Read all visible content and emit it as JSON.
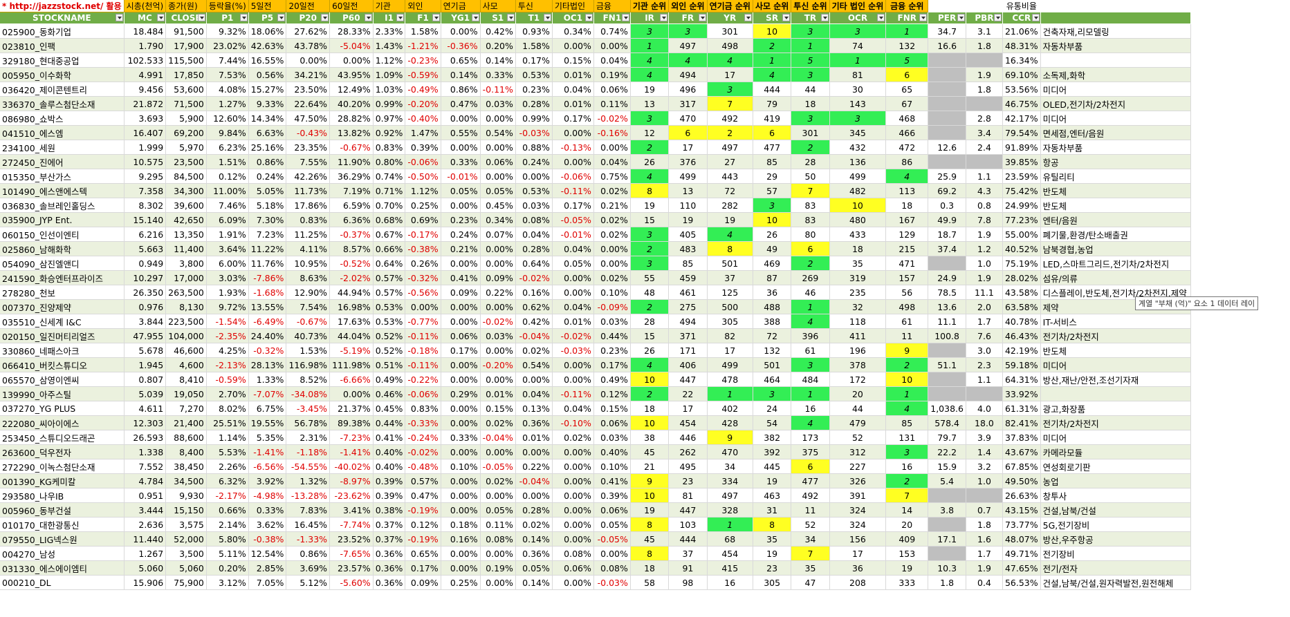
{
  "top_row": {
    "link": "* http://jazzstock.net/ 활용",
    "cells": [
      "시총(천억)",
      "종가(원)",
      "등락율(%)",
      "5일전",
      "20일전",
      "60일전",
      "기관",
      "외인",
      "연기금",
      "사모",
      "투신",
      "기타법인",
      "금융",
      "기관 순위",
      "외인 순위",
      "연기금 순위",
      "사모 순위",
      "투신 순위",
      "기타 법인 순위",
      "금융 순위",
      "",
      "",
      "유통비율"
    ]
  },
  "headers": [
    "STOCKNAME",
    "MC",
    "CLOSE",
    "P1",
    "P5",
    "P20",
    "P60",
    "I1",
    "F1",
    "YG1",
    "S1",
    "T1",
    "OC1",
    "FN1",
    "IR",
    "FR",
    "YR",
    "SR",
    "TR",
    "OCR",
    "FNR",
    "PER",
    "PBR",
    "CCR"
  ],
  "rows": [
    [
      "025900_동화기업",
      "18.484",
      "91,500",
      "9.32%",
      "18.06%",
      "27.62%",
      "28.33%",
      "2.33%",
      "1.58%",
      "0.00%",
      "0.42%",
      "0.93%",
      "0.34%",
      "0.74%",
      "3",
      "3",
      "301",
      "10",
      "3",
      "3",
      "1",
      "34.7",
      "3.1",
      "21.06%",
      "건축자재,리모델링"
    ],
    [
      "023810_인팩",
      "1.790",
      "17,900",
      "23.02%",
      "42.63%",
      "43.78%",
      "-5.04%",
      "1.43%",
      "-1.21%",
      "-0.36%",
      "0.20%",
      "1.58%",
      "0.00%",
      "0.00%",
      "1",
      "497",
      "498",
      "2",
      "1",
      "74",
      "132",
      "16.6",
      "1.8",
      "48.31%",
      "자동차부품"
    ],
    [
      "329180_현대중공업",
      "102.533",
      "115,500",
      "7.44%",
      "16.55%",
      "0.00%",
      "0.00%",
      "1.12%",
      "-0.23%",
      "0.65%",
      "0.14%",
      "0.17%",
      "0.15%",
      "0.04%",
      "4",
      "4",
      "4",
      "1",
      "5",
      "1",
      "5",
      "",
      "",
      "16.34%",
      ""
    ],
    [
      "005950_이수화학",
      "4.991",
      "17,850",
      "7.53%",
      "0.56%",
      "34.21%",
      "43.95%",
      "1.09%",
      "-0.59%",
      "0.14%",
      "0.33%",
      "0.53%",
      "0.01%",
      "0.19%",
      "4",
      "494",
      "17",
      "4",
      "3",
      "81",
      "6",
      "",
      "1.9",
      "69.10%",
      "소독제,화학"
    ],
    [
      "036420_제이콘텐트리",
      "9.456",
      "53,600",
      "4.08%",
      "15.27%",
      "23.50%",
      "12.49%",
      "1.03%",
      "-0.49%",
      "0.86%",
      "-0.11%",
      "0.23%",
      "0.04%",
      "0.06%",
      "19",
      "496",
      "3",
      "444",
      "44",
      "30",
      "65",
      "",
      "1.8",
      "53.56%",
      "미디어"
    ],
    [
      "336370_솔루스첨단소재",
      "21.872",
      "71,500",
      "1.27%",
      "9.33%",
      "22.64%",
      "40.20%",
      "0.99%",
      "-0.20%",
      "0.47%",
      "0.03%",
      "0.28%",
      "0.01%",
      "0.11%",
      "13",
      "317",
      "7",
      "79",
      "18",
      "143",
      "67",
      "",
      "",
      "46.75%",
      "OLED,전기차/2차전지"
    ],
    [
      "086980_쇼박스",
      "3.693",
      "5,900",
      "12.60%",
      "14.34%",
      "47.50%",
      "28.82%",
      "0.97%",
      "-0.40%",
      "0.00%",
      "0.00%",
      "0.99%",
      "0.17%",
      "-0.02%",
      "3",
      "470",
      "492",
      "419",
      "3",
      "3",
      "468",
      "",
      "2.8",
      "42.17%",
      "미디어"
    ],
    [
      "041510_에스엠",
      "16.407",
      "69,200",
      "9.84%",
      "6.63%",
      "-0.43%",
      "13.82%",
      "0.92%",
      "1.47%",
      "0.55%",
      "0.54%",
      "-0.03%",
      "0.00%",
      "-0.16%",
      "12",
      "6",
      "2",
      "6",
      "301",
      "345",
      "466",
      "",
      "3.4",
      "79.54%",
      "면세점,엔터/음원"
    ],
    [
      "234100_세원",
      "1.999",
      "5,970",
      "6.23%",
      "25.16%",
      "23.35%",
      "-0.67%",
      "0.83%",
      "0.39%",
      "0.00%",
      "0.00%",
      "0.88%",
      "-0.13%",
      "0.00%",
      "2",
      "17",
      "497",
      "477",
      "2",
      "432",
      "472",
      "12.6",
      "2.4",
      "91.89%",
      "자동차부품"
    ],
    [
      "272450_진에어",
      "10.575",
      "23,500",
      "1.51%",
      "0.86%",
      "7.55%",
      "11.90%",
      "0.80%",
      "-0.06%",
      "0.33%",
      "0.06%",
      "0.24%",
      "0.00%",
      "0.04%",
      "26",
      "376",
      "27",
      "85",
      "28",
      "136",
      "86",
      "",
      "",
      "39.85%",
      "항공"
    ],
    [
      "015350_부산가스",
      "9.295",
      "84,500",
      "0.12%",
      "0.24%",
      "42.26%",
      "36.29%",
      "0.74%",
      "-0.50%",
      "-0.01%",
      "0.00%",
      "0.00%",
      "-0.06%",
      "0.75%",
      "4",
      "499",
      "443",
      "29",
      "50",
      "499",
      "4",
      "25.9",
      "1.1",
      "23.59%",
      "유틸리티"
    ],
    [
      "101490_에스앤에스텍",
      "7.358",
      "34,300",
      "11.00%",
      "5.05%",
      "11.73%",
      "7.19%",
      "0.71%",
      "1.12%",
      "0.05%",
      "0.05%",
      "0.53%",
      "-0.11%",
      "0.02%",
      "8",
      "13",
      "72",
      "57",
      "7",
      "482",
      "113",
      "69.2",
      "4.3",
      "75.42%",
      "반도체"
    ],
    [
      "036830_솔브레인홀딩스",
      "8.302",
      "39,600",
      "7.46%",
      "5.18%",
      "17.86%",
      "6.59%",
      "0.70%",
      "0.25%",
      "0.00%",
      "0.45%",
      "0.03%",
      "0.17%",
      "0.21%",
      "19",
      "110",
      "282",
      "3",
      "83",
      "10",
      "18",
      "0.3",
      "0.8",
      "24.99%",
      "반도체"
    ],
    [
      "035900_JYP Ent.",
      "15.140",
      "42,650",
      "6.09%",
      "7.30%",
      "0.83%",
      "6.36%",
      "0.68%",
      "0.69%",
      "0.23%",
      "0.34%",
      "0.08%",
      "-0.05%",
      "0.02%",
      "15",
      "19",
      "19",
      "10",
      "83",
      "480",
      "167",
      "49.9",
      "7.8",
      "77.23%",
      "엔터/음원"
    ],
    [
      "060150_인선이엔티",
      "6.216",
      "13,350",
      "1.91%",
      "7.23%",
      "11.25%",
      "-0.37%",
      "0.67%",
      "-0.17%",
      "0.24%",
      "0.07%",
      "0.04%",
      "-0.01%",
      "0.02%",
      "3",
      "405",
      "4",
      "26",
      "80",
      "433",
      "129",
      "18.7",
      "1.9",
      "55.00%",
      "폐기물,환경/탄소배출권"
    ],
    [
      "025860_남해화학",
      "5.663",
      "11,400",
      "3.64%",
      "11.22%",
      "4.11%",
      "8.57%",
      "0.66%",
      "-0.38%",
      "0.21%",
      "0.00%",
      "0.28%",
      "0.04%",
      "0.00%",
      "2",
      "483",
      "8",
      "49",
      "6",
      "18",
      "215",
      "37.4",
      "1.2",
      "40.52%",
      "남북경협,농업"
    ],
    [
      "054090_삼진엘앤디",
      "0.949",
      "3,800",
      "6.00%",
      "11.76%",
      "10.95%",
      "-0.52%",
      "0.64%",
      "0.26%",
      "0.00%",
      "0.00%",
      "0.64%",
      "0.05%",
      "0.00%",
      "3",
      "85",
      "501",
      "469",
      "2",
      "35",
      "471",
      "",
      "1.0",
      "75.19%",
      "LED,스마트그리드,전기차/2차전지"
    ],
    [
      "241590_화승엔터프라이즈",
      "10.297",
      "17,000",
      "3.03%",
      "-7.86%",
      "8.63%",
      "-2.02%",
      "0.57%",
      "-0.32%",
      "0.41%",
      "0.09%",
      "-0.02%",
      "0.00%",
      "0.02%",
      "55",
      "459",
      "37",
      "87",
      "269",
      "319",
      "157",
      "24.9",
      "1.9",
      "28.02%",
      "섬유/의류"
    ],
    [
      "278280_천보",
      "26.350",
      "263,500",
      "1.93%",
      "-1.68%",
      "12.90%",
      "44.94%",
      "0.57%",
      "-0.56%",
      "0.09%",
      "0.22%",
      "0.16%",
      "0.00%",
      "0.10%",
      "48",
      "461",
      "125",
      "36",
      "46",
      "235",
      "56",
      "78.5",
      "11.1",
      "43.58%",
      "디스플레이,반도체,전기차/2차전지,제약"
    ],
    [
      "007370_진양제약",
      "0.976",
      "8,130",
      "9.72%",
      "13.55%",
      "7.54%",
      "16.98%",
      "0.53%",
      "0.00%",
      "0.00%",
      "0.00%",
      "0.62%",
      "0.04%",
      "-0.09%",
      "2",
      "275",
      "500",
      "488",
      "1",
      "32",
      "498",
      "13.6",
      "2.0",
      "63.58%",
      "제약"
    ],
    [
      "035510_신세계 I&C",
      "3.844",
      "223,500",
      "-1.54%",
      "-6.49%",
      "-0.67%",
      "17.63%",
      "0.53%",
      "-0.77%",
      "0.00%",
      "-0.02%",
      "0.42%",
      "0.01%",
      "0.03%",
      "28",
      "494",
      "305",
      "388",
      "4",
      "118",
      "61",
      "11.1",
      "1.7",
      "40.78%",
      "IT-서비스"
    ],
    [
      "020150_일진머티리얼즈",
      "47.955",
      "104,000",
      "-2.35%",
      "24.40%",
      "40.73%",
      "44.04%",
      "0.52%",
      "-0.11%",
      "0.06%",
      "0.03%",
      "-0.04%",
      "-0.02%",
      "0.44%",
      "15",
      "371",
      "82",
      "72",
      "396",
      "411",
      "11",
      "100.8",
      "7.6",
      "46.43%",
      "전기차/2차전지"
    ],
    [
      "330860_네패스아크",
      "5.678",
      "46,600",
      "4.25%",
      "-0.32%",
      "1.53%",
      "-5.19%",
      "0.52%",
      "-0.18%",
      "0.17%",
      "0.00%",
      "0.02%",
      "-0.03%",
      "0.23%",
      "26",
      "171",
      "17",
      "132",
      "61",
      "196",
      "9",
      "",
      "3.0",
      "42.19%",
      "반도체"
    ],
    [
      "066410_버킷스튜디오",
      "1.945",
      "4,600",
      "-2.13%",
      "28.13%",
      "116.98%",
      "111.98%",
      "0.51%",
      "-0.11%",
      "0.00%",
      "-0.20%",
      "0.54%",
      "0.00%",
      "0.17%",
      "4",
      "406",
      "499",
      "501",
      "3",
      "378",
      "2",
      "51.1",
      "2.3",
      "59.18%",
      "미디어"
    ],
    [
      "065570_삼영이엔씨",
      "0.807",
      "8,410",
      "-0.59%",
      "1.33%",
      "8.52%",
      "-6.66%",
      "0.49%",
      "-0.22%",
      "0.00%",
      "0.00%",
      "0.00%",
      "0.00%",
      "0.49%",
      "10",
      "447",
      "478",
      "464",
      "484",
      "172",
      "10",
      "",
      "1.1",
      "64.31%",
      "방산,재난/안전,조선기자재"
    ],
    [
      "139990_아주스틸",
      "5.039",
      "19,050",
      "2.70%",
      "-7.07%",
      "-34.08%",
      "0.00%",
      "0.46%",
      "-0.06%",
      "0.29%",
      "0.01%",
      "0.04%",
      "-0.11%",
      "0.12%",
      "2",
      "22",
      "1",
      "3",
      "1",
      "20",
      "1",
      "",
      "",
      "33.92%",
      ""
    ],
    [
      "037270_YG PLUS",
      "4.611",
      "7,270",
      "8.02%",
      "6.75%",
      "-3.45%",
      "21.37%",
      "0.45%",
      "0.83%",
      "0.00%",
      "0.15%",
      "0.13%",
      "0.04%",
      "0.15%",
      "18",
      "17",
      "402",
      "24",
      "16",
      "44",
      "4",
      "1,038.6",
      "4.0",
      "61.31%",
      "광고,화장품"
    ],
    [
      "222080_씨아이에스",
      "12.303",
      "21,400",
      "25.51%",
      "19.55%",
      "56.78%",
      "89.38%",
      "0.44%",
      "-0.33%",
      "0.00%",
      "0.02%",
      "0.36%",
      "-0.10%",
      "0.06%",
      "10",
      "454",
      "428",
      "54",
      "4",
      "479",
      "85",
      "578.4",
      "18.0",
      "82.41%",
      "전기차/2차전지"
    ],
    [
      "253450_스튜디오드래곤",
      "26.593",
      "88,600",
      "1.14%",
      "5.35%",
      "2.31%",
      "-7.23%",
      "0.41%",
      "-0.24%",
      "0.33%",
      "-0.04%",
      "0.01%",
      "0.02%",
      "0.03%",
      "38",
      "446",
      "9",
      "382",
      "173",
      "52",
      "131",
      "79.7",
      "3.9",
      "37.83%",
      "미디어"
    ],
    [
      "263600_덕우전자",
      "1.338",
      "8,400",
      "5.53%",
      "-1.41%",
      "-1.18%",
      "-1.41%",
      "0.40%",
      "-0.02%",
      "0.00%",
      "0.00%",
      "0.00%",
      "0.00%",
      "0.40%",
      "45",
      "262",
      "470",
      "392",
      "375",
      "312",
      "3",
      "22.2",
      "1.4",
      "43.67%",
      "카메라모듈"
    ],
    [
      "272290_이녹스첨단소재",
      "7.552",
      "38,450",
      "2.26%",
      "-6.56%",
      "-54.55%",
      "-40.02%",
      "0.40%",
      "-0.48%",
      "0.10%",
      "-0.05%",
      "0.22%",
      "0.00%",
      "0.10%",
      "21",
      "495",
      "34",
      "445",
      "6",
      "227",
      "16",
      "15.9",
      "3.2",
      "67.85%",
      "연성회로기판"
    ],
    [
      "001390_KG케미칼",
      "4.784",
      "34,500",
      "6.32%",
      "3.92%",
      "1.32%",
      "-8.97%",
      "0.39%",
      "0.57%",
      "0.00%",
      "0.02%",
      "-0.04%",
      "0.00%",
      "0.41%",
      "9",
      "23",
      "334",
      "19",
      "477",
      "326",
      "2",
      "5.4",
      "1.0",
      "49.50%",
      "농업"
    ],
    [
      "293580_나우IB",
      "0.951",
      "9,930",
      "-2.17%",
      "-4.98%",
      "-13.28%",
      "-23.62%",
      "0.39%",
      "0.47%",
      "0.00%",
      "0.00%",
      "0.00%",
      "0.00%",
      "0.39%",
      "10",
      "81",
      "497",
      "463",
      "492",
      "391",
      "7",
      "",
      "",
      "26.63%",
      "창투사"
    ],
    [
      "005960_동부건설",
      "3.444",
      "15,150",
      "0.66%",
      "0.33%",
      "7.83%",
      "3.41%",
      "0.38%",
      "-0.19%",
      "0.00%",
      "0.05%",
      "0.28%",
      "0.00%",
      "0.06%",
      "19",
      "447",
      "328",
      "31",
      "11",
      "324",
      "14",
      "3.8",
      "0.7",
      "43.15%",
      "건설,남북/건설"
    ],
    [
      "010170_대한광통신",
      "2.636",
      "3,575",
      "2.14%",
      "3.62%",
      "16.45%",
      "-7.74%",
      "0.37%",
      "0.12%",
      "0.18%",
      "0.11%",
      "0.02%",
      "0.00%",
      "0.05%",
      "8",
      "103",
      "1",
      "8",
      "52",
      "324",
      "20",
      "",
      "1.8",
      "73.77%",
      "5G,전기장비"
    ],
    [
      "079550_LIG넥스원",
      "11.440",
      "52,000",
      "5.80%",
      "-0.38%",
      "-1.33%",
      "23.52%",
      "0.37%",
      "-0.19%",
      "0.16%",
      "0.08%",
      "0.14%",
      "0.00%",
      "-0.05%",
      "45",
      "444",
      "68",
      "35",
      "34",
      "156",
      "409",
      "17.1",
      "1.6",
      "48.07%",
      "방산,우주항공"
    ],
    [
      "004270_남성",
      "1.267",
      "3,500",
      "5.11%",
      "12.54%",
      "0.86%",
      "-7.65%",
      "0.36%",
      "0.65%",
      "0.00%",
      "0.00%",
      "0.36%",
      "0.08%",
      "0.00%",
      "8",
      "37",
      "454",
      "19",
      "7",
      "17",
      "153",
      "",
      "1.7",
      "49.71%",
      "전기장비"
    ],
    [
      "031330_에스에이엠티",
      "5.060",
      "5,060",
      "0.20%",
      "2.85%",
      "3.69%",
      "23.57%",
      "0.36%",
      "0.17%",
      "0.00%",
      "0.19%",
      "0.05%",
      "0.06%",
      "0.08%",
      "18",
      "91",
      "415",
      "23",
      "35",
      "36",
      "19",
      "10.3",
      "1.9",
      "47.65%",
      "전기/전자"
    ],
    [
      "000210_DL",
      "15.906",
      "75,900",
      "3.12%",
      "7.05%",
      "5.12%",
      "-5.60%",
      "0.36%",
      "0.09%",
      "0.25%",
      "0.00%",
      "0.14%",
      "0.00%",
      "-0.03%",
      "58",
      "98",
      "16",
      "305",
      "47",
      "208",
      "333",
      "1.8",
      "0.4",
      "56.53%",
      "건설,남북/건설,원자력발전,원전해체"
    ]
  ],
  "highlights": {
    "green": [
      [
        0,
        14
      ],
      [
        0,
        15
      ],
      [
        0,
        18
      ],
      [
        0,
        19
      ],
      [
        0,
        20
      ],
      [
        1,
        14
      ],
      [
        1,
        17
      ],
      [
        1,
        18
      ],
      [
        2,
        14
      ],
      [
        2,
        15
      ],
      [
        2,
        16
      ],
      [
        2,
        17
      ],
      [
        2,
        18
      ],
      [
        2,
        19
      ],
      [
        2,
        20
      ],
      [
        3,
        14
      ],
      [
        3,
        17
      ],
      [
        3,
        18
      ],
      [
        4,
        16
      ],
      [
        6,
        14
      ],
      [
        6,
        18
      ],
      [
        6,
        19
      ],
      [
        8,
        14
      ],
      [
        8,
        18
      ],
      [
        10,
        14
      ],
      [
        10,
        20
      ],
      [
        12,
        17
      ],
      [
        14,
        14
      ],
      [
        14,
        16
      ],
      [
        15,
        14
      ],
      [
        16,
        14
      ],
      [
        16,
        18
      ],
      [
        19,
        14
      ],
      [
        19,
        18
      ],
      [
        20,
        18
      ],
      [
        23,
        14
      ],
      [
        23,
        18
      ],
      [
        23,
        20
      ],
      [
        25,
        14
      ],
      [
        25,
        16
      ],
      [
        25,
        17
      ],
      [
        25,
        18
      ],
      [
        25,
        20
      ],
      [
        26,
        20
      ],
      [
        27,
        18
      ],
      [
        29,
        20
      ],
      [
        31,
        20
      ],
      [
        34,
        16
      ]
    ],
    "yellow": [
      [
        0,
        17
      ],
      [
        3,
        20
      ],
      [
        5,
        16
      ],
      [
        7,
        15
      ],
      [
        7,
        16
      ],
      [
        7,
        17
      ],
      [
        11,
        14
      ],
      [
        11,
        18
      ],
      [
        12,
        19
      ],
      [
        13,
        17
      ],
      [
        15,
        16
      ],
      [
        15,
        18
      ],
      [
        22,
        20
      ],
      [
        24,
        14
      ],
      [
        24,
        20
      ],
      [
        27,
        14
      ],
      [
        28,
        16
      ],
      [
        30,
        18
      ],
      [
        31,
        14
      ],
      [
        32,
        14
      ],
      [
        32,
        20
      ],
      [
        34,
        14
      ],
      [
        34,
        17
      ],
      [
        36,
        14
      ],
      [
        36,
        18
      ]
    ],
    "gray": [
      [
        2,
        21
      ],
      [
        2,
        22
      ],
      [
        3,
        21
      ],
      [
        4,
        21
      ],
      [
        5,
        21
      ],
      [
        5,
        22
      ],
      [
        6,
        21
      ],
      [
        7,
        21
      ],
      [
        9,
        21
      ],
      [
        9,
        22
      ],
      [
        16,
        21
      ],
      [
        22,
        21
      ],
      [
        24,
        21
      ],
      [
        25,
        21
      ],
      [
        25,
        22
      ],
      [
        32,
        21
      ],
      [
        32,
        22
      ],
      [
        34,
        21
      ],
      [
        36,
        21
      ]
    ]
  },
  "tooltip": "계열 \"부채 (억)\" 요소 1 데이터 레이"
}
